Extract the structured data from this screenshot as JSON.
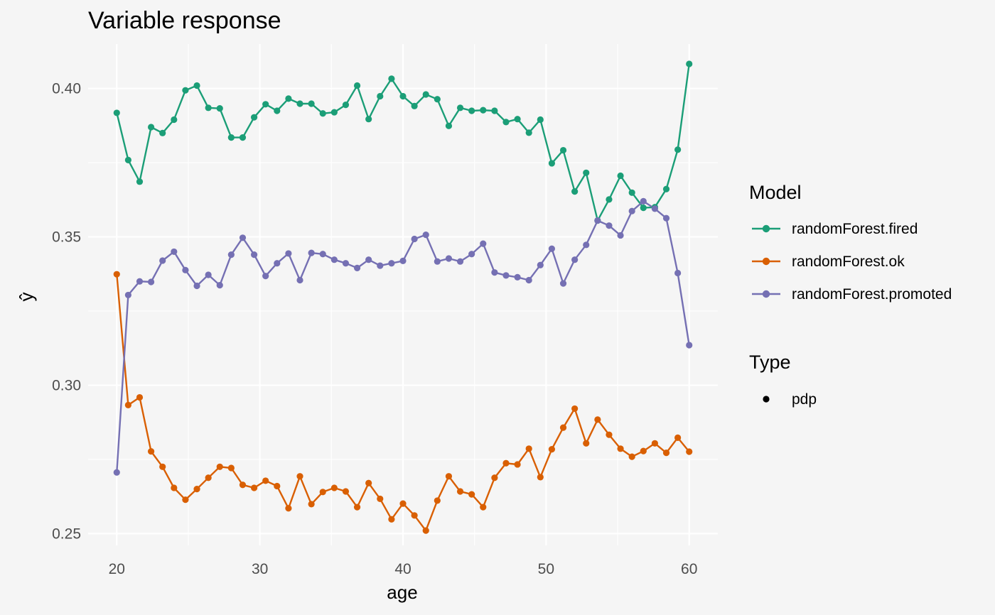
{
  "chart_data": {
    "type": "line",
    "title": "Variable response",
    "xlabel": "age",
    "ylabel": "ŷ",
    "xlim": [
      18,
      62
    ],
    "ylim": [
      0.246,
      0.415
    ],
    "x_ticks": [
      20,
      30,
      40,
      50,
      60
    ],
    "x_tick_labels": [
      "20",
      "30",
      "40",
      "50",
      "60"
    ],
    "y_ticks": [
      0.25,
      0.3,
      0.35,
      0.4
    ],
    "y_tick_labels": [
      "0.25",
      "0.30",
      "0.35",
      "0.40"
    ],
    "grid": true,
    "legend": {
      "position": "right",
      "model_title": "Model",
      "type_title": "Type",
      "type_entries": [
        "pdp"
      ]
    },
    "x": [
      20,
      20.8,
      21.6,
      22.4,
      23.2,
      24,
      24.8,
      25.6,
      26.4,
      27.2,
      28,
      28.8,
      29.6,
      30.4,
      31.2,
      32,
      32.8,
      33.6,
      34.4,
      35.2,
      36,
      36.8,
      37.6,
      38.4,
      39.2,
      40,
      40.8,
      41.6,
      42.4,
      43.2,
      44,
      44.8,
      45.6,
      46.4,
      47.2,
      48,
      48.8,
      49.6,
      50.4,
      51.2,
      52,
      52.8,
      53.6,
      54.4,
      55.2,
      56,
      56.8,
      57.6,
      58.4,
      59.2,
      60
    ],
    "series": [
      {
        "name": "randomForest.fired",
        "color": "#1b9e77",
        "values": [
          0.3918,
          0.3759,
          0.3686,
          0.387,
          0.385,
          0.3895,
          0.3994,
          0.401,
          0.3935,
          0.3933,
          0.3835,
          0.3835,
          0.3903,
          0.3947,
          0.3925,
          0.3966,
          0.3949,
          0.3949,
          0.3916,
          0.392,
          0.3945,
          0.401,
          0.3897,
          0.3974,
          0.4033,
          0.3974,
          0.3941,
          0.398,
          0.3964,
          0.3874,
          0.3935,
          0.3925,
          0.3927,
          0.3925,
          0.3887,
          0.3897,
          0.3851,
          0.3895,
          0.3748,
          0.3792,
          0.3653,
          0.3716,
          0.3555,
          0.3626,
          0.3706,
          0.3649,
          0.3598,
          0.36,
          0.3661,
          0.3794,
          0.4083
        ]
      },
      {
        "name": "randomForest.ok",
        "color": "#d95f02",
        "values": [
          0.3374,
          0.2933,
          0.2959,
          0.2777,
          0.2725,
          0.2654,
          0.2614,
          0.265,
          0.2688,
          0.2725,
          0.2721,
          0.2664,
          0.2654,
          0.2678,
          0.266,
          0.2585,
          0.2693,
          0.2599,
          0.264,
          0.2654,
          0.2642,
          0.2589,
          0.267,
          0.2617,
          0.2548,
          0.2601,
          0.2561,
          0.251,
          0.2611,
          0.2693,
          0.2642,
          0.2632,
          0.2589,
          0.2688,
          0.2737,
          0.2733,
          0.2786,
          0.269,
          0.2784,
          0.2857,
          0.2921,
          0.2804,
          0.2884,
          0.2833,
          0.2786,
          0.2759,
          0.2778,
          0.2804,
          0.2772,
          0.2823,
          0.2776
        ]
      },
      {
        "name": "randomForest.promoted",
        "color": "#7570b3",
        "values": [
          0.2706,
          0.3304,
          0.335,
          0.3348,
          0.342,
          0.345,
          0.3388,
          0.3335,
          0.3372,
          0.3337,
          0.344,
          0.3497,
          0.344,
          0.3368,
          0.3411,
          0.3444,
          0.3354,
          0.3446,
          0.3442,
          0.3423,
          0.3411,
          0.3395,
          0.3423,
          0.3403,
          0.3411,
          0.3419,
          0.3493,
          0.3507,
          0.3417,
          0.3427,
          0.3417,
          0.3442,
          0.3477,
          0.338,
          0.337,
          0.3364,
          0.3354,
          0.3405,
          0.346,
          0.3343,
          0.3423,
          0.3473,
          0.3555,
          0.3538,
          0.3505,
          0.3587,
          0.362,
          0.3595,
          0.3563,
          0.3378,
          0.3135
        ]
      }
    ]
  }
}
